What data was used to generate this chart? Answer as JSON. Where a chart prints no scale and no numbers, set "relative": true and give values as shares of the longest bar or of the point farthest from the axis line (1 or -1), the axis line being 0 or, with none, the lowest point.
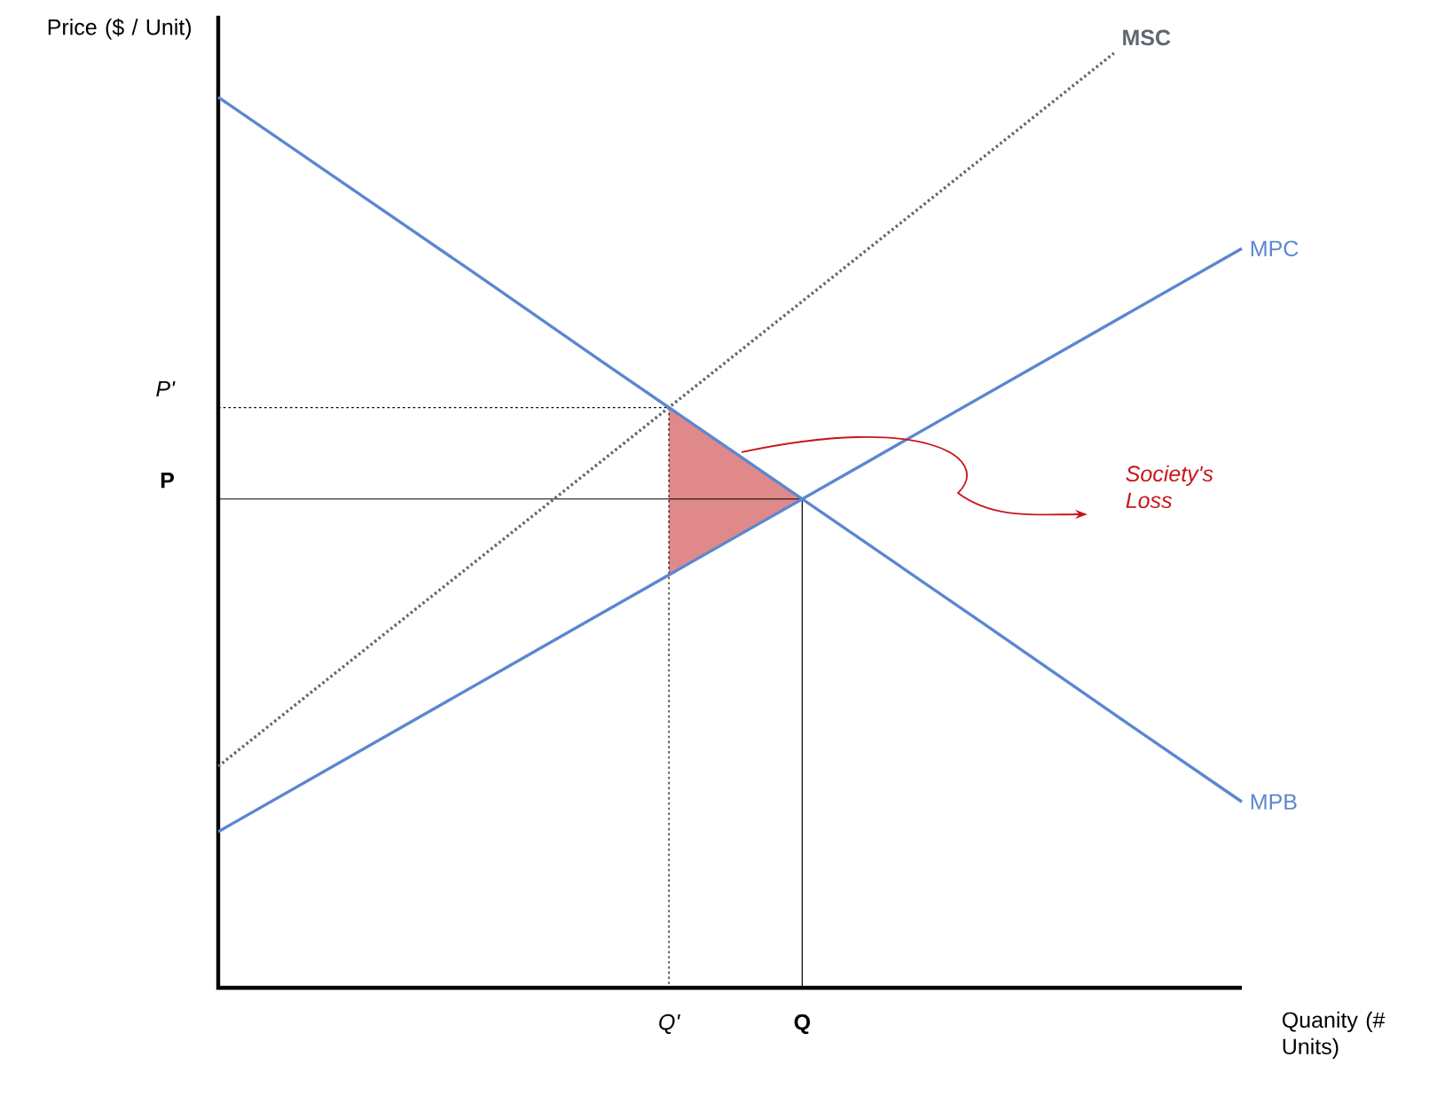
{
  "chart_data": {
    "type": "line",
    "relative": true,
    "xlabel": "Quanity (# Units)",
    "ylabel": "Price ($ / Unit)",
    "categories": [
      null,
      null,
      null,
      null,
      null,
      null,
      null,
      null,
      null
    ],
    "series": [
      {
        "name": "MSC",
        "color": "#5f6672",
        "line_style": "dotted",
        "values": [
          0.237,
          0.346,
          0.455,
          0.564,
          0.673,
          0.782,
          0.891,
          1.0,
          null
        ]
      },
      {
        "name": "MPC",
        "color": "#5b87cf",
        "line_style": "solid",
        "values": [
          0.167,
          0.245,
          0.323,
          0.401,
          0.479,
          0.557,
          0.635,
          0.713,
          0.791
        ]
      },
      {
        "name": "MPB",
        "color": "#5b87cf",
        "line_style": "solid",
        "values": [
          0.953,
          0.859,
          0.765,
          0.67,
          0.576,
          0.482,
          0.388,
          0.293,
          0.199
        ]
      }
    ],
    "annotations": [
      "P'",
      "Q'",
      "P",
      "Q",
      "Society's Loss"
    ]
  }
}
